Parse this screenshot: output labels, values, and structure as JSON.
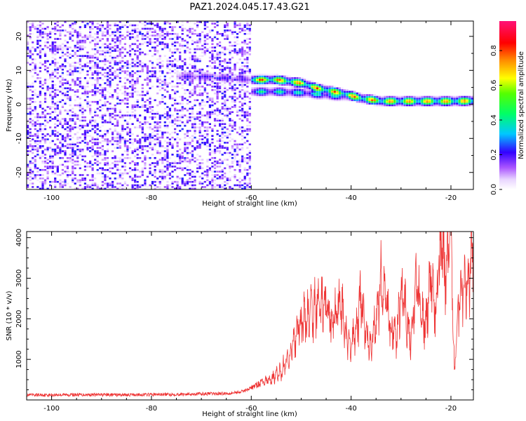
{
  "figure_title": "PAZ1.2024.045.17.43.G21",
  "chart_data": [
    {
      "type": "heatmap",
      "title": "",
      "xlabel": "Height of straight line (km)",
      "ylabel": "Frequency (Hz)",
      "xlim": [
        -105,
        -15.5
      ],
      "ylim": [
        -25,
        24.5
      ],
      "xticks": [
        -100,
        -80,
        -60,
        -40,
        -20
      ],
      "yticks": [
        20,
        10,
        0,
        -10,
        -20
      ],
      "grid": false,
      "colorbar": {
        "label": "Normalized spectral amplitude",
        "range": [
          0,
          0.97
        ],
        "ticks": [
          0.0,
          0.2,
          0.4,
          0.6,
          0.8
        ],
        "colormap": "gist_rainbow_r (white→violet→blue→cyan→green→yellow→red→magenta)"
      },
      "features": [
        {
          "name": "noise",
          "x": [
            -105,
            -60.5
          ],
          "y": [
            -25,
            24.5
          ],
          "amplitude": 0.15
        },
        {
          "name": "ridge-weak",
          "x": [
            -75,
            -60
          ],
          "y_path": [
            [
              -75,
              8
            ],
            [
              -70,
              8
            ],
            [
              -65,
              7.5
            ],
            [
              -60,
              7
            ]
          ],
          "amplitude": 0.22
        },
        {
          "name": "ridge-main",
          "x": [
            -60,
            -16
          ],
          "y_path": [
            [
              -60,
              7
            ],
            [
              -55,
              7
            ],
            [
              -50,
              6
            ],
            [
              -47,
              4.5
            ],
            [
              -42,
              3
            ],
            [
              -38,
              1.5
            ],
            [
              -34,
              0.7
            ],
            [
              -20,
              0.7
            ],
            [
              -16,
              0.8
            ]
          ],
          "amplitude": 0.85
        },
        {
          "name": "ridge-low",
          "x": [
            -60,
            -40
          ],
          "y_path": [
            [
              -60,
              3.5
            ],
            [
              -55,
              3.5
            ],
            [
              -50,
              3.2
            ],
            [
              -45,
              2.5
            ],
            [
              -42,
              2.2
            ]
          ],
          "amplitude": 0.45
        }
      ]
    },
    {
      "type": "line",
      "title": "",
      "xlabel": "Height of straight line (km)",
      "ylabel": "SNR (10 * v/v)",
      "xlim": [
        -105,
        -15.5
      ],
      "ylim": [
        0,
        4150
      ],
      "xticks": [
        -100,
        -80,
        -60,
        -40,
        -20
      ],
      "yticks": [
        1000,
        2000,
        3000,
        4000
      ],
      "grid": false,
      "color": "#ee3333",
      "series": [
        {
          "name": "",
          "x": [
            -105,
            -95,
            -85,
            -75,
            -65,
            -62,
            -60,
            -58,
            -56,
            -54,
            -52,
            -50,
            -48,
            -46,
            -44,
            -42,
            -41,
            -40,
            -39,
            -38,
            -37,
            -36,
            -35,
            -34,
            -33,
            -32,
            -31,
            -30,
            -29,
            -28,
            -27,
            -26,
            -25,
            -24,
            -23,
            -22,
            -21,
            -20,
            -19.3,
            -18.5,
            -17.5,
            -16.5,
            -15.8
          ],
          "y": [
            120,
            130,
            125,
            140,
            160,
            200,
            300,
            420,
            520,
            700,
            1200,
            1900,
            2100,
            2400,
            2000,
            2300,
            1500,
            1300,
            1700,
            2500,
            1600,
            1300,
            2000,
            2900,
            2500,
            1700,
            1500,
            2500,
            2200,
            1400,
            3000,
            2000,
            1800,
            3100,
            2200,
            3900,
            3000,
            4100,
            600,
            2300,
            3000,
            2800,
            3600
          ]
        }
      ]
    }
  ]
}
